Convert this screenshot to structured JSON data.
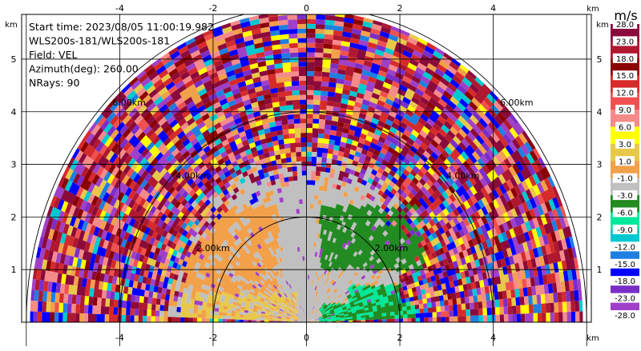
{
  "chart_data": {
    "type": "heatmap",
    "subtype": "radar-rhi",
    "info_lines": [
      "Start time: 2023/08/05 11:00:19.982",
      "WLS200s-181/WLS200s-181",
      "Field: VEL",
      "Azimuth(deg): 260.00",
      "NRays: 90"
    ],
    "x_unit": "km",
    "y_unit": "km",
    "xlim": [
      -6.1,
      6.1
    ],
    "ylim": [
      0,
      5.85
    ],
    "x_ticks": [
      -4,
      -2,
      0,
      2,
      4
    ],
    "y_ticks": [
      1,
      2,
      3,
      4,
      5
    ],
    "range_rings": [
      {
        "radius_km": 2,
        "label": "2.00km"
      },
      {
        "radius_km": 4,
        "label": "4.00km"
      },
      {
        "radius_km": 6,
        "label": "6.00km"
      }
    ],
    "max_range_km": 5.92,
    "grid": true,
    "colorbar": {
      "label": "m/s",
      "levels": [
        28.0,
        23.0,
        18.0,
        15.0,
        12.0,
        9.0,
        6.0,
        3.0,
        1.0,
        -1.0,
        -3.0,
        -6.0,
        -9.0,
        -12.0,
        -15.0,
        -18.0,
        -23.0,
        -28.0
      ],
      "tick_labels": [
        "28.0",
        "23.0",
        "18.0",
        "15.0",
        "12.0",
        "9.0",
        "6.0",
        "3.0",
        "1.0",
        "-1.0",
        "-3.0",
        "-6.0",
        "-9.0",
        "-12.0",
        "-15.0",
        "-18.0",
        "-23.0",
        "-28.0"
      ],
      "colors": [
        "#8b0a3c",
        "#b01830",
        "#8b0000",
        "#d72a2a",
        "#f05050",
        "#f58a8a",
        "#ffff00",
        "#e8c84a",
        "#f2a04a",
        "#c0c0c0",
        "#228b22",
        "#00e89a",
        "#00c8d0",
        "#1e7fe0",
        "#0000ff",
        "#7b2dc8",
        "#a040c8",
        "#8b0a3c"
      ]
    }
  }
}
